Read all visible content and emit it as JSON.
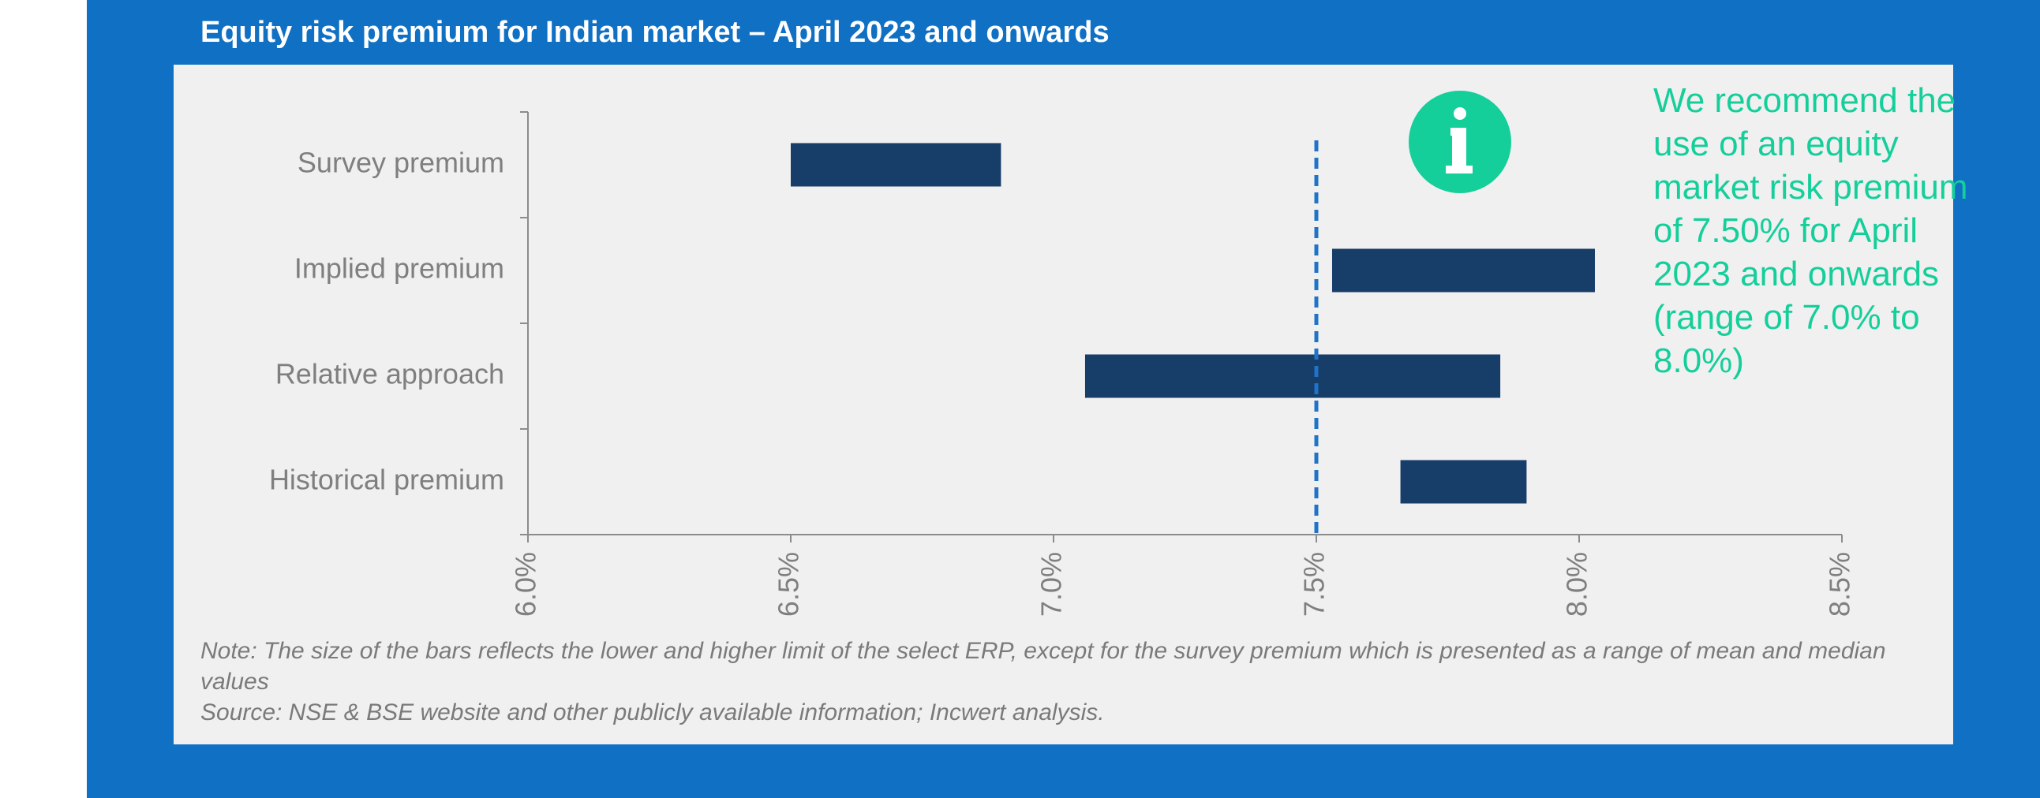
{
  "title": "Equity risk premium for Indian market – April 2023 and onwards",
  "recommendation": "We recommend the use of an equity market risk premium of 7.50% for April 2023 and onwards (range of 7.0% to 8.0%)",
  "note": "Note: The size of the bars reflects the lower and higher limit of the select ERP, except for the survey premium which is presented as a range of mean and median values",
  "source": "Source: NSE & BSE website and other publicly available information; Incwert analysis.",
  "info_icon": "info-icon",
  "colors": {
    "bar": "#173d69",
    "reference_line": "#1f74c8",
    "frame": "#0f70c4",
    "panel": "#f1f0f1",
    "accent": "#15cf9b",
    "axis_text": "#7f7f7f"
  },
  "chart_data": {
    "type": "bar",
    "orientation": "horizontal",
    "style": "floating range bars",
    "categories": [
      "Survey premium",
      "Implied premium",
      "Relative approach",
      "Historical premium"
    ],
    "ranges": [
      {
        "category": "Survey premium",
        "low": 6.5,
        "high": 6.9
      },
      {
        "category": "Implied premium",
        "low": 7.53,
        "high": 8.03
      },
      {
        "category": "Relative approach",
        "low": 7.06,
        "high": 7.85
      },
      {
        "category": "Historical premium",
        "low": 7.66,
        "high": 7.9
      }
    ],
    "xlim": [
      6.0,
      8.5
    ],
    "xticks": [
      6.0,
      6.5,
      7.0,
      7.5,
      8.0,
      8.5
    ],
    "xtick_labels": [
      "6.0%",
      "6.5%",
      "7.0%",
      "7.5%",
      "8.0%",
      "8.5%"
    ],
    "reference_line": {
      "x": 7.5,
      "style": "dashed"
    },
    "grid": false,
    "legend": "none"
  }
}
